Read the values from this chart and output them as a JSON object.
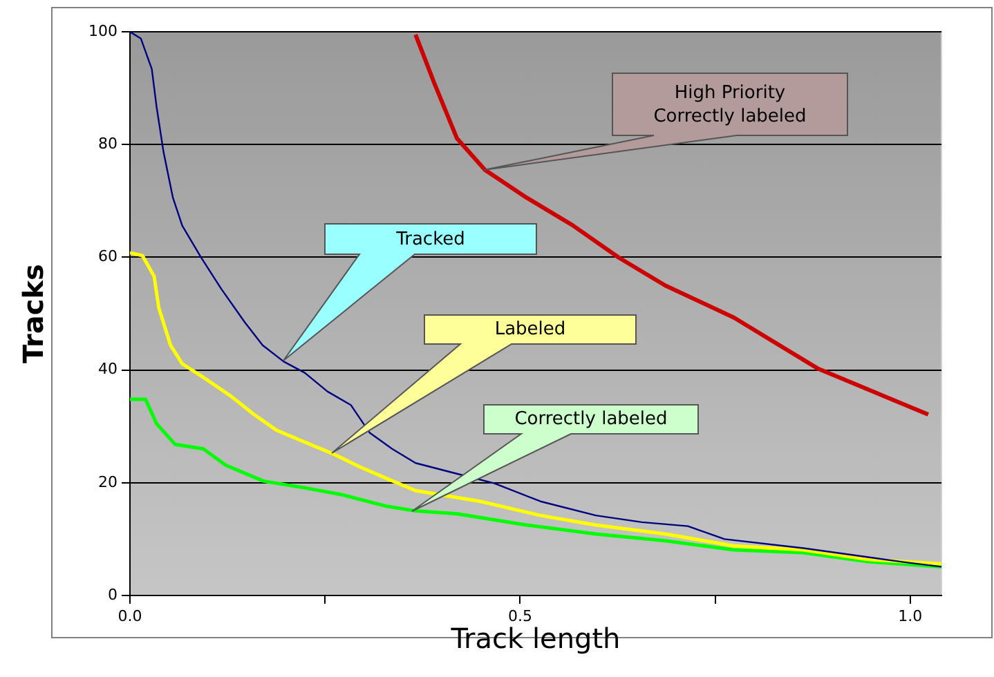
{
  "chart_data": {
    "type": "line",
    "xlabel": "Track length",
    "ylabel": "Tracks",
    "xlim": [
      0,
      1.04
    ],
    "ylim": [
      0,
      100
    ],
    "xticks": [
      {
        "value": 0,
        "label": "0.0"
      },
      {
        "value": 0.25,
        "label": null
      },
      {
        "value": 0.5,
        "label": "0.5"
      },
      {
        "value": 0.75,
        "label": null
      },
      {
        "value": 1,
        "label": "1.0"
      }
    ],
    "yticks": [
      0,
      20,
      40,
      60,
      80,
      100
    ],
    "grid": "y",
    "legend": false,
    "marker": "none",
    "line_style": "solid",
    "series": [
      {
        "color": "#000080",
        "x": [
          0,
          0.014,
          0.028,
          0.034,
          0.043,
          0.055,
          0.067,
          0.091,
          0.117,
          0.147,
          0.17,
          0.197,
          0.224,
          0.253,
          0.283,
          0.307,
          0.336,
          0.366,
          0.419,
          0.467,
          0.526,
          0.597,
          0.656,
          0.715,
          0.762,
          0.863,
          0.946,
          0.993,
          1.04
        ],
        "values": [
          100,
          98.8,
          93.4,
          86.8,
          78.7,
          70.6,
          65.6,
          60,
          54.4,
          48.5,
          44.4,
          41.5,
          39.5,
          36.2,
          33.8,
          28.9,
          26,
          23.5,
          21.6,
          19.9,
          16.7,
          14.2,
          13,
          12.3,
          10,
          8.4,
          6.8,
          5.9,
          5.1
        ]
      },
      {
        "color": "#ffff00",
        "x": [
          0,
          0.016,
          0.031,
          0.037,
          0.052,
          0.067,
          0.094,
          0.129,
          0.159,
          0.188,
          0.224,
          0.259,
          0.295,
          0.33,
          0.366,
          0.449,
          0.526,
          0.597,
          0.686,
          0.774,
          0.863,
          0.946,
          1.04
        ],
        "values": [
          60.8,
          60.3,
          56.6,
          51,
          44.4,
          41.1,
          38.7,
          35.4,
          32.1,
          29.3,
          27.2,
          25.2,
          22.8,
          20.7,
          18.6,
          16.7,
          14.2,
          12.5,
          10.9,
          8.8,
          8.1,
          6.4,
          5.6
        ]
      },
      {
        "color": "#00ff00",
        "x": [
          0,
          0.02,
          0.034,
          0.058,
          0.094,
          0.123,
          0.171,
          0.224,
          0.271,
          0.33,
          0.366,
          0.419,
          0.508,
          0.597,
          0.686,
          0.774,
          0.863,
          0.946,
          1.04
        ],
        "values": [
          34.8,
          34.8,
          30.5,
          26.8,
          26,
          23.1,
          20.3,
          19.1,
          17.9,
          15.8,
          15,
          14.5,
          12.5,
          10.9,
          9.7,
          8.1,
          7.6,
          6,
          5.1
        ]
      },
      {
        "color": "#cc0000",
        "x": [
          0.366,
          0.39,
          0.419,
          0.455,
          0.508,
          0.567,
          0.627,
          0.686,
          0.774,
          0.881,
          1.023
        ],
        "values": [
          99.5,
          90.9,
          81.1,
          75.5,
          70.6,
          65.7,
          59.9,
          55,
          49.3,
          40.3,
          32.1
        ]
      }
    ],
    "annotations": [
      "Tracked",
      "Labeled",
      "Correctly labeled",
      "High Priority\nCorrectly labeled"
    ]
  }
}
